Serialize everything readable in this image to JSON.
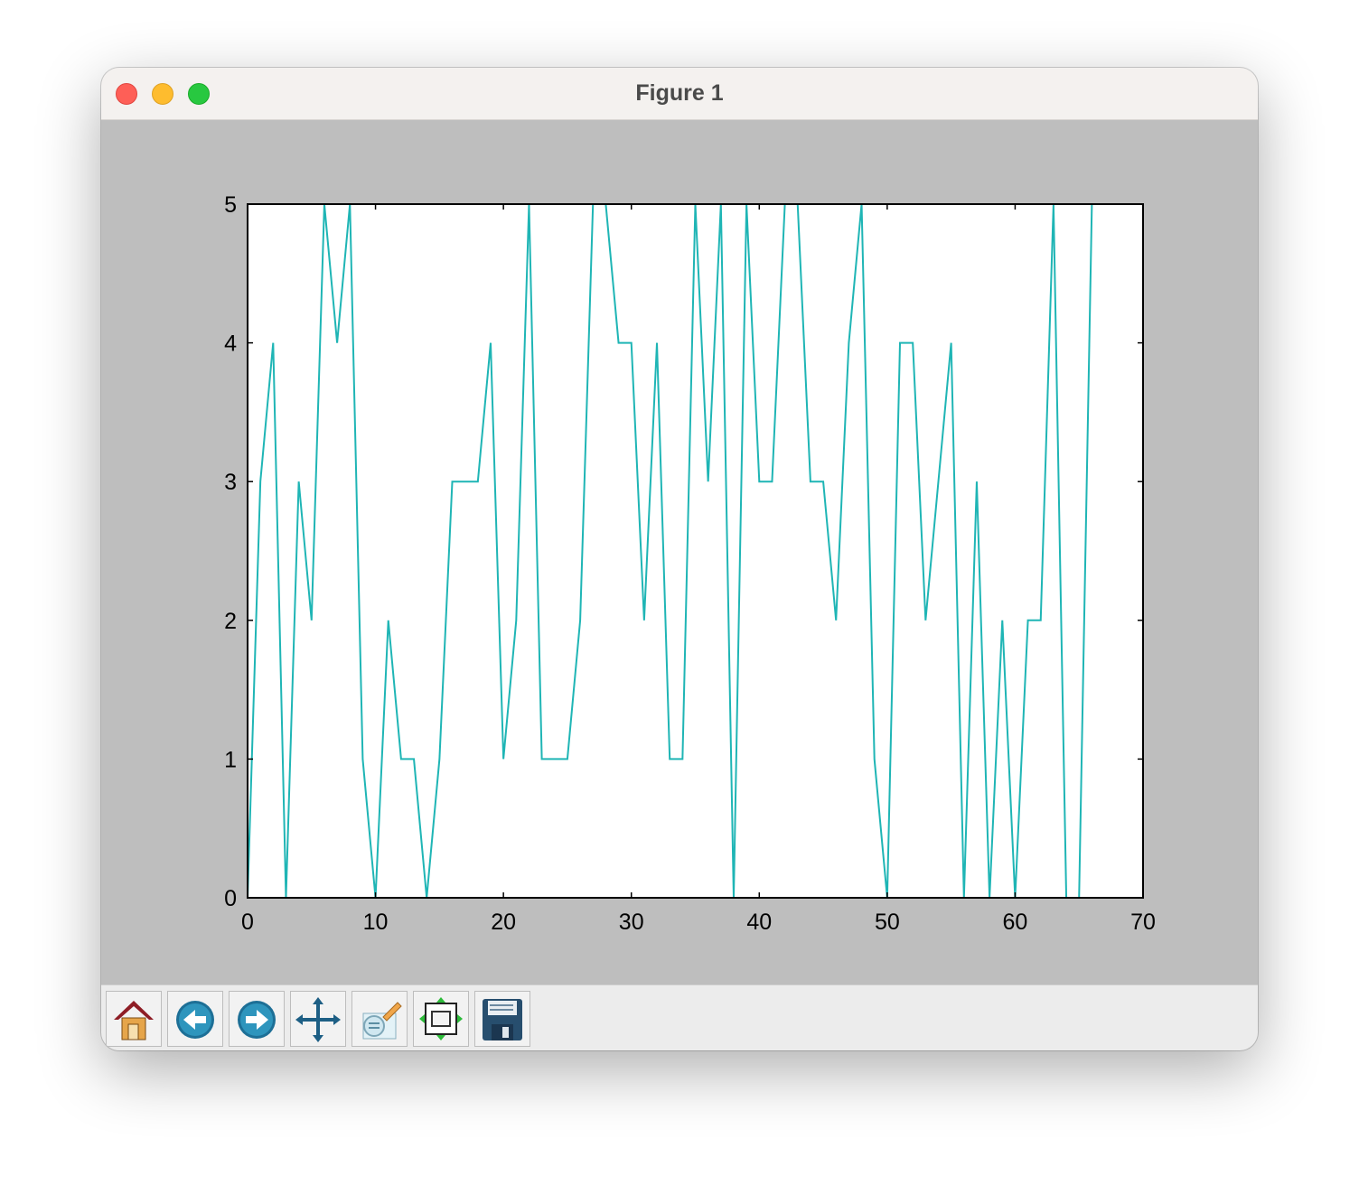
{
  "window": {
    "title": "Figure 1"
  },
  "toolbar": {
    "buttons": [
      {
        "name": "home-button",
        "icon": "home-icon"
      },
      {
        "name": "back-button",
        "icon": "back-arrow-icon"
      },
      {
        "name": "forward-button",
        "icon": "forward-arrow-icon"
      },
      {
        "name": "pan-button",
        "icon": "move-icon"
      },
      {
        "name": "zoom-button",
        "icon": "zoom-rect-icon"
      },
      {
        "name": "subplots-button",
        "icon": "subplots-icon"
      },
      {
        "name": "save-button",
        "icon": "floppy-disk-icon"
      }
    ]
  },
  "chart_data": {
    "type": "line",
    "title": "",
    "xlabel": "",
    "ylabel": "",
    "xlim": [
      0,
      70
    ],
    "ylim": [
      0,
      5
    ],
    "xticks": [
      "0",
      "10",
      "20",
      "30",
      "40",
      "50",
      "60",
      "70"
    ],
    "yticks": [
      "0",
      "1",
      "2",
      "3",
      "4",
      "5"
    ],
    "grid": false,
    "line_color": "#1fb5b5",
    "series": [
      {
        "x": [
          0,
          1,
          2,
          3,
          4,
          5,
          6,
          7,
          8,
          9,
          10,
          11,
          12,
          13,
          14,
          15,
          16,
          17,
          18,
          19,
          20,
          21,
          22,
          23,
          24,
          25,
          26,
          27,
          28,
          29,
          30,
          31,
          32,
          33,
          34,
          35,
          36,
          37,
          38,
          39,
          40,
          41,
          42,
          43,
          44,
          45,
          46,
          47,
          48,
          49,
          50,
          51,
          52,
          53,
          54,
          55,
          56,
          57,
          58,
          59,
          60,
          61,
          62,
          63,
          64,
          65,
          66
        ],
        "y": [
          0,
          3,
          4,
          0,
          3,
          2,
          5,
          4,
          5,
          1,
          0,
          2,
          1,
          1,
          0,
          1,
          3,
          3,
          3,
          4,
          1,
          2,
          5,
          1,
          1,
          1,
          2,
          5,
          5,
          4,
          4,
          2,
          4,
          1,
          1,
          5,
          3,
          5,
          0,
          5,
          3,
          3,
          5,
          5,
          3,
          3,
          2,
          4,
          5,
          1,
          0,
          4,
          4,
          2,
          3,
          4,
          0,
          3,
          0,
          2,
          0,
          2,
          2,
          5,
          0,
          0,
          5
        ]
      }
    ]
  }
}
